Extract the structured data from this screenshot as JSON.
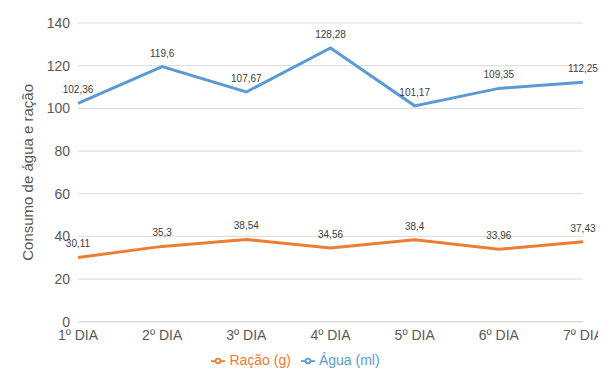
{
  "chart_data": {
    "type": "line",
    "y_label": "Consumo de água e ração",
    "categories": [
      "1º DIA",
      "2º DIA",
      "3º DIA",
      "4º DIA",
      "5º DIA",
      "6º DIA",
      "7º DIA"
    ],
    "series": [
      {
        "name": "Água (ml)",
        "color": "#5b9bd5",
        "values": [
          102.36,
          119.6,
          107.67,
          128.28,
          101.17,
          109.35,
          112.25
        ],
        "value_labels": [
          "102,36",
          "119,6",
          "107,67",
          "128,28",
          "101,17",
          "109,35",
          "112,25"
        ]
      },
      {
        "name": "Ração (g)",
        "color": "#ed7d31",
        "values": [
          30.11,
          35.3,
          38.54,
          34.56,
          38.4,
          33.96,
          37.43
        ],
        "value_labels": [
          "30,11",
          "35,3",
          "38,54",
          "34,56",
          "38,4",
          "33,96",
          "37,43"
        ]
      }
    ],
    "ylim": [
      0,
      140
    ],
    "yticks": [
      0,
      20,
      40,
      60,
      80,
      100,
      120,
      140
    ],
    "grid": true,
    "legend": "bottom",
    "data_labels": true
  }
}
